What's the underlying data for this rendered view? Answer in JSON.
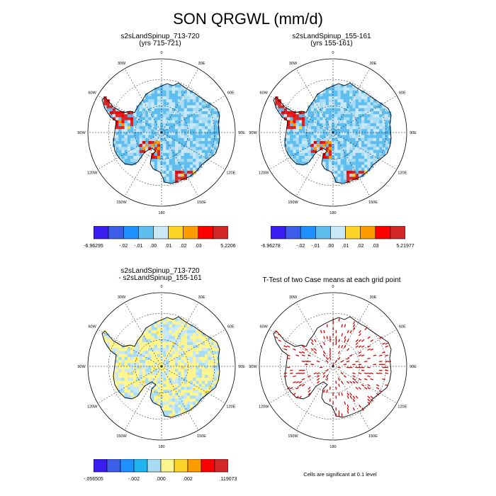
{
  "title": "SON QRGWL (mm/d)",
  "panels": [
    {
      "id": "p1",
      "title_line1": "s2sLandSpinup_713-720",
      "title_line2": "(yrs 715-721)",
      "fill": "ctrl"
    },
    {
      "id": "p2",
      "title_line1": "s2sLandSpinup_155-161",
      "title_line2": "(yrs 155-161)",
      "fill": "ctrl"
    },
    {
      "id": "p3",
      "title_line1": "s2sLandSpinup_713-720",
      "title_line2": "- s2sLandSpinup_155-161",
      "fill": "diff"
    },
    {
      "id": "p4",
      "title_line1": "T-Test of two Case means at each grid point",
      "title_line2": "",
      "fill": "ttest"
    }
  ],
  "lon_labels": [
    "0",
    "30E",
    "60E",
    "90E",
    "120E",
    "150E",
    "180",
    "150W",
    "120W",
    "90W",
    "60W",
    "30W"
  ],
  "colorbars": [
    {
      "id": "cb1",
      "colors": [
        "#3a1cf0",
        "#3c5ee8",
        "#1e90ff",
        "#5fbef0",
        "#c8e8f8",
        "#ffd428",
        "#ff9a00",
        "#ff0000",
        "#d42828"
      ],
      "labels": [
        "-6.96295",
        "-.02",
        "-.01",
        ".00",
        ".01",
        ".02",
        ".03",
        "5.2206"
      ]
    },
    {
      "id": "cb2",
      "colors": [
        "#3a1cf0",
        "#3c5ee8",
        "#1e90ff",
        "#5fbef0",
        "#c8e8f8",
        "#ffd428",
        "#ff9a00",
        "#ff0000",
        "#d42828"
      ],
      "labels": [
        "-6.96278",
        "-.02",
        "-.01",
        ".00",
        ".01",
        ".02",
        ".03",
        "5.21977"
      ]
    },
    {
      "id": "cb3",
      "colors": [
        "#3a1cf0",
        "#3c5ee8",
        "#1e90ff",
        "#1eb4f0",
        "#a8dcf4",
        "#fff58c",
        "#ffd428",
        "#ff9a00",
        "#ff0000",
        "#d42828"
      ],
      "labels": [
        "-.056505",
        "-.002",
        ".000",
        ".002",
        ".119073"
      ]
    }
  ],
  "note": "Cells are significant at 0.1 level",
  "chart_data": {
    "type": "heatmap",
    "title": "SON QRGWL (mm/d)",
    "variable": "QRGWL",
    "units": "mm/d",
    "season": "SON",
    "projection": "polar stereographic (south)",
    "contour_levels_case": [
      -0.02,
      -0.01,
      0.0,
      0.01,
      0.02,
      0.03
    ],
    "range_case1": [
      -6.96295,
      5.2206
    ],
    "range_case2": [
      -6.96278,
      5.21977
    ],
    "range_diff": [
      -0.056505,
      0.119073
    ],
    "diff_levels_labeled": [
      -0.002,
      0.0,
      0.002
    ],
    "significance_level": 0.1
  },
  "colors": {
    "coast": "#000000",
    "ocean": "#ffffff",
    "grid": "#000000"
  }
}
